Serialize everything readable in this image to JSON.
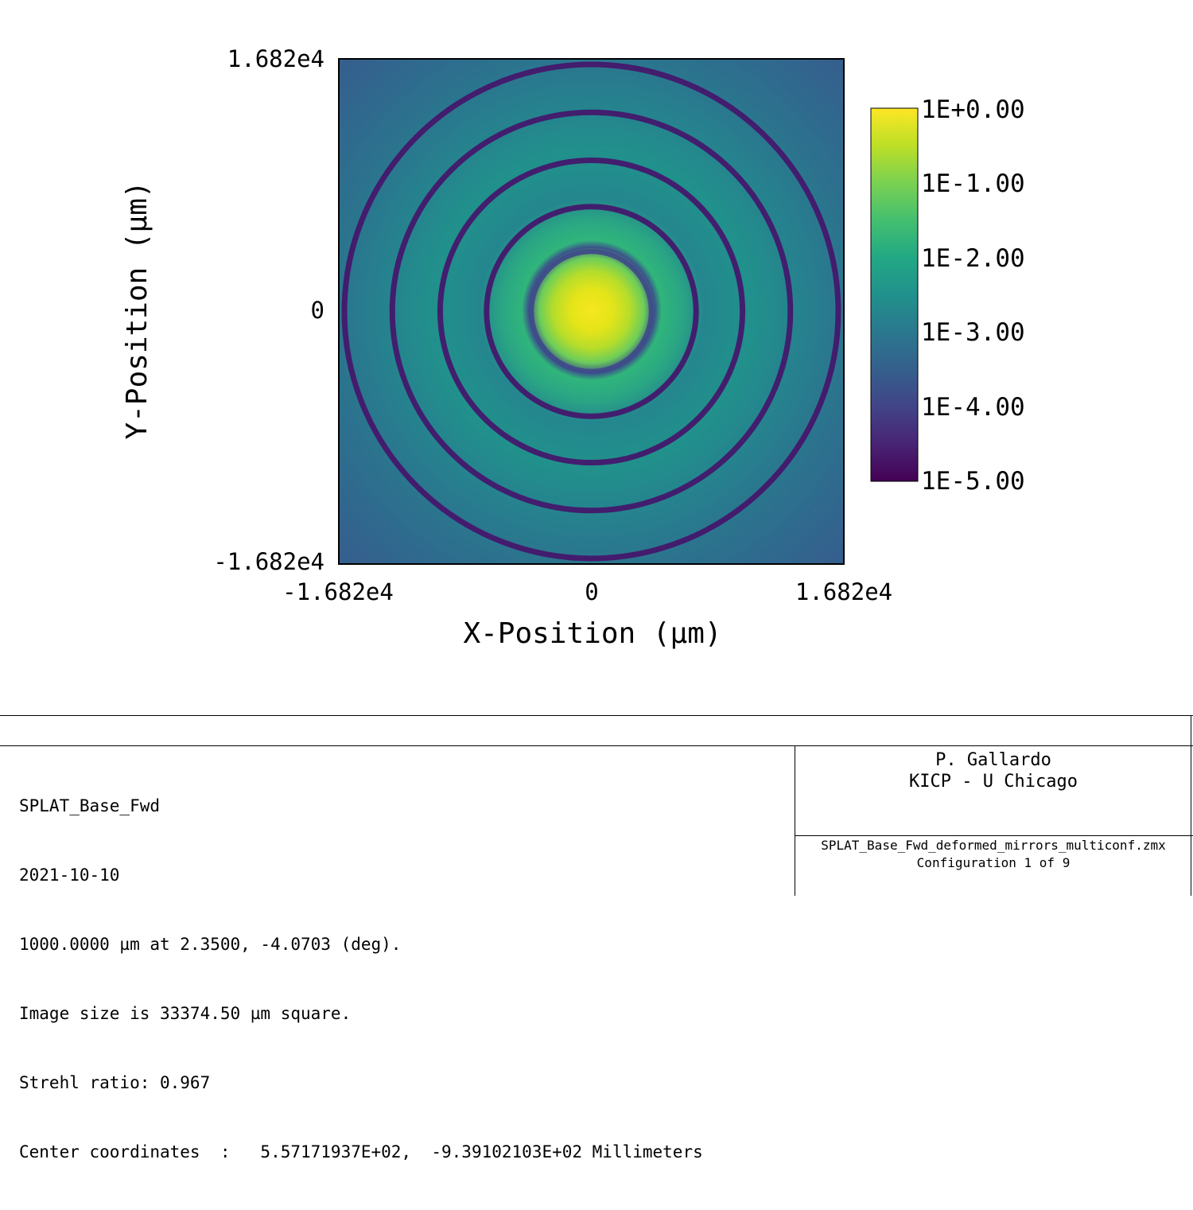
{
  "chart_data": {
    "type": "heatmap",
    "description_free": true,
    "colormap": "viridis",
    "scale": "log",
    "xlabel": "X-Position (µm)",
    "ylabel": "Y-Position (µm)",
    "xlim": [
      -16820,
      16820
    ],
    "ylim": [
      -16820,
      16820
    ],
    "x_ticks": [
      "-1.682e4",
      "0",
      "1.682e4"
    ],
    "y_ticks": [
      "1.682e4",
      "0",
      "-1.682e4"
    ],
    "colorbar": {
      "range": [
        1e-05,
        1
      ],
      "ticks": [
        "1E+0.00",
        "1E-1.00",
        "1E-2.00",
        "1E-3.00",
        "1E-4.00",
        "1E-5.00"
      ]
    },
    "peak_center": [
      0,
      0
    ],
    "dark_ring_radii": [
      4000,
      7000,
      10100,
      13300,
      16500
    ]
  },
  "footer": {
    "lines": [
      "SPLAT_Base_Fwd",
      "2021-10-10",
      "1000.0000 µm at 2.3500, -4.0703 (deg).",
      "Image size is 33374.50 µm square.",
      "Strehl ratio: 0.967",
      "Center coordinates  :   5.57171937E+02,  -9.39102103E+02 Millimeters"
    ],
    "author": "P. Gallardo",
    "institution": "KICP - U Chicago",
    "filename": "SPLAT_Base_Fwd_deformed_mirrors_multiconf.zmx",
    "configuration": "Configuration 1 of 9"
  }
}
